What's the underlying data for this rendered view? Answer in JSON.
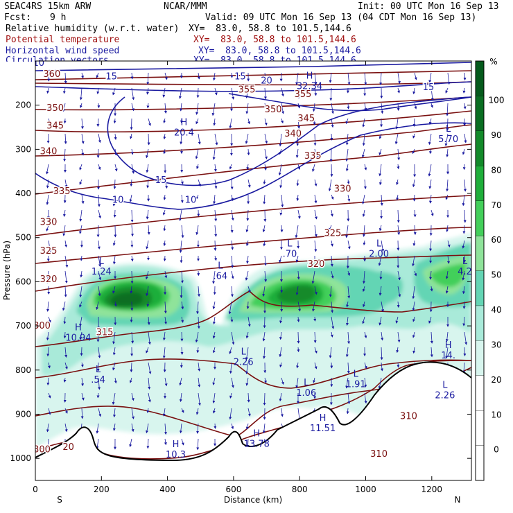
{
  "header": {
    "model": "SEAC4RS 15km ARW",
    "org": "NCAR/MMM",
    "init": "Init: 00 UTC Mon 16 Sep 13",
    "fcst_label": "Fcst:",
    "fcst_value": "9 h",
    "valid": "Valid: 09 UTC Mon 16 Sep 13 (04 CDT Mon 16 Sep 13)"
  },
  "fields": [
    {
      "label": "Relative humidity (w.r.t. water)",
      "xy": "XY=  83.0, 58.8 to 101.5,144.6",
      "color": "#000000"
    },
    {
      "label": "Potential temperature",
      "xy": "XY=  83.0, 58.8 to 101.5,144.6",
      "color": "#a01010"
    },
    {
      "label": "Horizontal wind speed",
      "xy": "XY=  83.0, 58.8 to 101.5,144.6",
      "color": "#1a1aa0"
    },
    {
      "label": "Circulation vectors",
      "xy": "XY=  83.0, 58.8 to 101.5,144.6",
      "color": "#1a1aa0"
    }
  ],
  "colorbar": {
    "unit": "%",
    "ticks": [
      "100",
      "90",
      "80",
      "70",
      "60",
      "50",
      "40",
      "30",
      "20",
      "10",
      "0"
    ],
    "colors": [
      "#ffffff",
      "#ffffff",
      "#ffffff",
      "#d8f5ee",
      "#a9ead9",
      "#64d5b4",
      "#8fe39a",
      "#43cf5a",
      "#1fae3a",
      "#138a2a",
      "#0a6e22",
      "#055a1c"
    ]
  },
  "chart_data": {
    "type": "cross-section",
    "xlabel": "Distance (km)",
    "ylabel": "Pressure (hPa)",
    "x_ticks": [
      "0",
      "200",
      "400",
      "600",
      "800",
      "1000",
      "1200"
    ],
    "y_ticks": [
      "200",
      "300",
      "400",
      "500",
      "600",
      "700",
      "800",
      "900",
      "1000"
    ],
    "xlim": [
      0,
      1320
    ],
    "ylim": [
      1050,
      100
    ],
    "x_end_labels": {
      "left": "S",
      "right": "N"
    },
    "theta_labels": [
      {
        "x": 20,
        "p": 700,
        "text": "300"
      },
      {
        "x": 20,
        "p": 980,
        "text": "300"
      },
      {
        "x": 100,
        "p": 975,
        "text": "20"
      },
      {
        "x": 40,
        "p": 595,
        "text": "320"
      },
      {
        "x": 40,
        "p": 530,
        "text": "325"
      },
      {
        "x": 40,
        "p": 465,
        "text": "330"
      },
      {
        "x": 80,
        "p": 395,
        "text": "335"
      },
      {
        "x": 40,
        "p": 305,
        "text": "340"
      },
      {
        "x": 60,
        "p": 247,
        "text": "345"
      },
      {
        "x": 60,
        "p": 207,
        "text": "350"
      },
      {
        "x": 50,
        "p": 130,
        "text": "360"
      },
      {
        "x": 210,
        "p": 715,
        "text": "315"
      },
      {
        "x": 640,
        "p": 165,
        "text": "355"
      },
      {
        "x": 720,
        "p": 210,
        "text": "350"
      },
      {
        "x": 820,
        "p": 230,
        "text": "345"
      },
      {
        "x": 780,
        "p": 265,
        "text": "340"
      },
      {
        "x": 840,
        "p": 315,
        "text": "335"
      },
      {
        "x": 930,
        "p": 390,
        "text": "330"
      },
      {
        "x": 900,
        "p": 490,
        "text": "325"
      },
      {
        "x": 850,
        "p": 560,
        "text": "320"
      },
      {
        "x": 1040,
        "p": 990,
        "text": "310"
      },
      {
        "x": 1130,
        "p": 905,
        "text": "310"
      },
      {
        "x": 810,
        "p": 175,
        "text": "355"
      }
    ],
    "wind_labels": [
      {
        "x": 10,
        "p": 105,
        "text": "10"
      },
      {
        "x": 230,
        "p": 135,
        "text": "15"
      },
      {
        "x": 620,
        "p": 135,
        "text": "15"
      },
      {
        "x": 700,
        "p": 145,
        "text": "20"
      },
      {
        "x": 1190,
        "p": 160,
        "text": "15"
      },
      {
        "x": 380,
        "p": 370,
        "text": "15"
      },
      {
        "x": 250,
        "p": 415,
        "text": "10"
      },
      {
        "x": 470,
        "p": 415,
        "text": "10"
      }
    ],
    "extrema": [
      {
        "x": 450,
        "p": 245,
        "kind": "H",
        "value": "20.4"
      },
      {
        "x": 830,
        "p": 140,
        "kind": "H",
        "value": "32.34"
      },
      {
        "x": 1250,
        "p": 260,
        "kind": "L",
        "value": "5.70"
      },
      {
        "x": 200,
        "p": 560,
        "kind": "L",
        "value": "1.24"
      },
      {
        "x": 560,
        "p": 570,
        "kind": "L",
        "value": ".64"
      },
      {
        "x": 770,
        "p": 520,
        "kind": "L",
        "value": ".70"
      },
      {
        "x": 1040,
        "p": 520,
        "kind": "L",
        "value": "2.00"
      },
      {
        "x": 1300,
        "p": 560,
        "kind": "L",
        "value": "4.2"
      },
      {
        "x": 130,
        "p": 710,
        "kind": "H",
        "value": "10.94"
      },
      {
        "x": 190,
        "p": 805,
        "kind": "L",
        "value": ".54"
      },
      {
        "x": 630,
        "p": 765,
        "kind": "L",
        "value": "2.26"
      },
      {
        "x": 820,
        "p": 835,
        "kind": "L",
        "value": "1.06"
      },
      {
        "x": 970,
        "p": 815,
        "kind": "L",
        "value": "1.91"
      },
      {
        "x": 1250,
        "p": 750,
        "kind": "H",
        "value": "14."
      },
      {
        "x": 1240,
        "p": 840,
        "kind": "L",
        "value": "2.26"
      },
      {
        "x": 870,
        "p": 915,
        "kind": "H",
        "value": "11.51"
      },
      {
        "x": 670,
        "p": 950,
        "kind": "H",
        "value": "13.78"
      },
      {
        "x": 425,
        "p": 975,
        "kind": "H",
        "value": "10.3"
      }
    ]
  }
}
